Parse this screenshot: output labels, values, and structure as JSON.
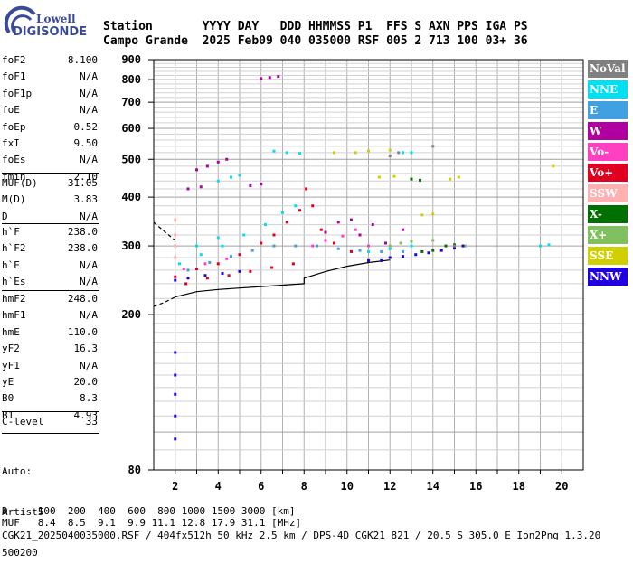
{
  "logo": {
    "top": "Lowell",
    "main": "DIGISONDE"
  },
  "header": {
    "row1": "Station       YYYY DAY   DDD HHMMSS P1  FFS S AXN PPS IGA PS",
    "row2": "Campo Grande  2025 Feb09 040 035000 RSF 005 2 713 100 03+ 36"
  },
  "params": {
    "group1": [
      {
        "label": "foF2",
        "value": "8.100"
      },
      {
        "label": "foF1",
        "value": "N/A"
      },
      {
        "label": "foF1p",
        "value": "N/A"
      },
      {
        "label": "foE",
        "value": "N/A"
      },
      {
        "label": "foEp",
        "value": "0.52"
      },
      {
        "label": "fxI",
        "value": "9.50"
      },
      {
        "label": "foEs",
        "value": "N/A"
      },
      {
        "label": "fmin",
        "value": "2.10"
      }
    ],
    "group2": [
      {
        "label": "MUF(D)",
        "value": "31.05"
      },
      {
        "label": "M(D)",
        "value": "3.83"
      },
      {
        "label": "D",
        "value": "N/A"
      }
    ],
    "group3": [
      {
        "label": "h`F",
        "value": "238.0"
      },
      {
        "label": "h`F2",
        "value": "238.0"
      },
      {
        "label": "h`E",
        "value": "N/A"
      },
      {
        "label": "h`Es",
        "value": "N/A"
      }
    ],
    "group4": [
      {
        "label": "hmF2",
        "value": "248.0"
      },
      {
        "label": "hmF1",
        "value": "N/A"
      },
      {
        "label": "hmE",
        "value": "110.0"
      },
      {
        "label": "yF2",
        "value": "16.3"
      },
      {
        "label": "yF1",
        "value": "N/A"
      },
      {
        "label": "yE",
        "value": "20.0"
      },
      {
        "label": "B0",
        "value": "8.3"
      },
      {
        "label": "B1",
        "value": "4.93"
      }
    ],
    "group5": [
      {
        "label": "C-level",
        "value": "33"
      }
    ],
    "auto": [
      "Auto:",
      "Artist5",
      "500200"
    ]
  },
  "legend": [
    {
      "label": "NoVal",
      "color": "#808080"
    },
    {
      "label": "NNE",
      "color": "#00e0f0"
    },
    {
      "label": "E",
      "color": "#40a0e0"
    },
    {
      "label": "W",
      "color": "#b000a0"
    },
    {
      "label": "Vo-",
      "color": "#ff40c0"
    },
    {
      "label": "Vo+",
      "color": "#e00020"
    },
    {
      "label": "SSW",
      "color": "#ffb0b0"
    },
    {
      "label": "X-",
      "color": "#007000"
    },
    {
      "label": "X+",
      "color": "#80c060"
    },
    {
      "label": "SSE",
      "color": "#d0d000"
    },
    {
      "label": "NNW",
      "color": "#2000e0"
    }
  ],
  "footer": {
    "line1": "D     100  200  400  600  800 1000 1500 3000 [km]",
    "line2": "MUF   8.4  8.5  9.1  9.9 11.1 12.8 17.9 31.1 [MHz]",
    "line3": "CGK21_2025040035000.RSF / 404fx512h 50 kHz 2.5 km / DPS-4D CGK21 821 / 20.5 S 305.0 E Ion2Png 1.3.20"
  },
  "chart_data": {
    "type": "scatter",
    "xlim": [
      1,
      21
    ],
    "ylim": [
      80,
      900
    ],
    "y_scale": "log",
    "x_ticks": [
      2,
      4,
      6,
      8,
      10,
      12,
      14,
      16,
      18,
      20
    ],
    "y_ticks": [
      80,
      200,
      300,
      400,
      500,
      600,
      700,
      800,
      900
    ],
    "grid": true,
    "series": [
      {
        "name": "Vo+",
        "color": "#e00020",
        "points": [
          [
            2.0,
            250
          ],
          [
            3.0,
            262
          ],
          [
            4.0,
            270
          ],
          [
            5.0,
            285
          ],
          [
            6.0,
            305
          ],
          [
            6.6,
            320
          ],
          [
            7.2,
            345
          ],
          [
            7.8,
            370
          ],
          [
            8.1,
            420
          ],
          [
            8.4,
            380
          ],
          [
            8.8,
            330
          ],
          [
            9.4,
            305
          ],
          [
            10.2,
            290
          ],
          [
            2.5,
            240
          ],
          [
            3.5,
            248
          ],
          [
            4.5,
            252
          ],
          [
            5.5,
            258
          ],
          [
            6.5,
            264
          ],
          [
            7.5,
            270
          ]
        ]
      },
      {
        "name": "NNE",
        "color": "#00e0f0",
        "points": [
          [
            2.2,
            270
          ],
          [
            3.2,
            285
          ],
          [
            4.2,
            300
          ],
          [
            5.2,
            320
          ],
          [
            6.2,
            340
          ],
          [
            7.0,
            365
          ],
          [
            7.6,
            380
          ],
          [
            6.6,
            525
          ],
          [
            7.2,
            520
          ],
          [
            7.8,
            518
          ],
          [
            4.0,
            440
          ],
          [
            4.6,
            450
          ],
          [
            5.0,
            455
          ],
          [
            12.6,
            520
          ],
          [
            13.0,
            520
          ],
          [
            11.0,
            290
          ],
          [
            12.0,
            295
          ],
          [
            13.0,
            300
          ],
          [
            19.0,
            300
          ],
          [
            19.4,
            302
          ],
          [
            3.0,
            300
          ],
          [
            4.0,
            315
          ]
        ]
      },
      {
        "name": "E",
        "color": "#40a0e0",
        "points": [
          [
            2.6,
            260
          ],
          [
            3.6,
            272
          ],
          [
            4.6,
            282
          ],
          [
            5.6,
            292
          ],
          [
            6.6,
            300
          ],
          [
            7.6,
            300
          ],
          [
            8.6,
            300
          ],
          [
            9.6,
            295
          ],
          [
            10.6,
            292
          ],
          [
            11.6,
            290
          ],
          [
            12.6,
            290
          ]
        ]
      },
      {
        "name": "W",
        "color": "#b000a0",
        "points": [
          [
            6.0,
            805
          ],
          [
            6.4,
            810
          ],
          [
            6.8,
            815
          ],
          [
            3.0,
            470
          ],
          [
            3.5,
            480
          ],
          [
            4.0,
            492
          ],
          [
            4.4,
            500
          ],
          [
            2.6,
            420
          ],
          [
            3.2,
            425
          ],
          [
            10.2,
            350
          ],
          [
            10.6,
            320
          ],
          [
            11.2,
            340
          ],
          [
            11.8,
            305
          ],
          [
            12.6,
            330
          ],
          [
            9.0,
            325
          ],
          [
            9.6,
            345
          ],
          [
            5.5,
            428
          ],
          [
            6.0,
            432
          ]
        ]
      },
      {
        "name": "Vo-",
        "color": "#ff40c0",
        "points": [
          [
            2.4,
            262
          ],
          [
            3.4,
            270
          ],
          [
            4.4,
            278
          ],
          [
            8.4,
            300
          ],
          [
            9.0,
            310
          ],
          [
            9.8,
            318
          ],
          [
            10.4,
            330
          ],
          [
            11.0,
            300
          ]
        ]
      },
      {
        "name": "SSW",
        "color": "#ffb0b0",
        "points": [
          [
            2.0,
            350
          ],
          [
            2.0,
            320
          ],
          [
            2.0,
            300
          ],
          [
            2.0,
            280
          ]
        ]
      },
      {
        "name": "X-",
        "color": "#007000",
        "points": [
          [
            13.5,
            290
          ],
          [
            14.0,
            292
          ],
          [
            14.6,
            300
          ],
          [
            15.0,
            302
          ],
          [
            13.0,
            445
          ],
          [
            13.4,
            442
          ]
        ]
      },
      {
        "name": "X+",
        "color": "#80c060",
        "points": [
          [
            12.0,
            300
          ],
          [
            12.5,
            305
          ],
          [
            13.0,
            308
          ],
          [
            14.0,
            310
          ],
          [
            15.5,
            300
          ]
        ]
      },
      {
        "name": "SSE",
        "color": "#d0d000",
        "points": [
          [
            9.4,
            520
          ],
          [
            10.4,
            520
          ],
          [
            11.0,
            525
          ],
          [
            12.0,
            528
          ],
          [
            13.5,
            360
          ],
          [
            14.0,
            362
          ],
          [
            14.8,
            445
          ],
          [
            15.2,
            450
          ],
          [
            19.6,
            480
          ],
          [
            11.5,
            450
          ],
          [
            12.2,
            452
          ]
        ]
      },
      {
        "name": "NNW",
        "color": "#2000e0",
        "points": [
          [
            2.0,
            96
          ],
          [
            2.0,
            110
          ],
          [
            2.0,
            125
          ],
          [
            2.0,
            140
          ],
          [
            2.0,
            160
          ],
          [
            12.0,
            280
          ],
          [
            12.6,
            282
          ],
          [
            13.2,
            285
          ],
          [
            13.8,
            288
          ],
          [
            14.4,
            292
          ],
          [
            15.0,
            296
          ],
          [
            15.4,
            300
          ],
          [
            11.6,
            275
          ],
          [
            11.0,
            275
          ],
          [
            2.0,
            245
          ],
          [
            2.6,
            248
          ],
          [
            3.4,
            252
          ],
          [
            4.2,
            255
          ],
          [
            5.0,
            258
          ]
        ]
      },
      {
        "name": "NoVal",
        "color": "#808080",
        "points": [
          [
            12.4,
            520
          ],
          [
            12.0,
            510
          ],
          [
            14.0,
            540
          ],
          [
            15.0,
            300
          ]
        ]
      }
    ],
    "traces": [
      {
        "style": "solid",
        "color": "#000000",
        "points": [
          [
            2.0,
            222
          ],
          [
            3.0,
            229
          ],
          [
            4.0,
            232
          ],
          [
            5.0,
            234
          ],
          [
            6.0,
            236
          ],
          [
            7.0,
            238
          ],
          [
            8.0,
            240
          ],
          [
            8.0,
            248
          ],
          [
            9.0,
            258
          ],
          [
            10.0,
            266
          ],
          [
            11.0,
            272
          ],
          [
            12.0,
            276
          ]
        ]
      },
      {
        "style": "dashed",
        "color": "#000000",
        "points": [
          [
            1.0,
            345
          ],
          [
            1.4,
            330
          ],
          [
            2.0,
            310
          ]
        ]
      },
      {
        "style": "dashed",
        "color": "#000000",
        "points": [
          [
            1.0,
            210
          ],
          [
            1.5,
            215
          ],
          [
            2.0,
            222
          ]
        ]
      }
    ]
  }
}
